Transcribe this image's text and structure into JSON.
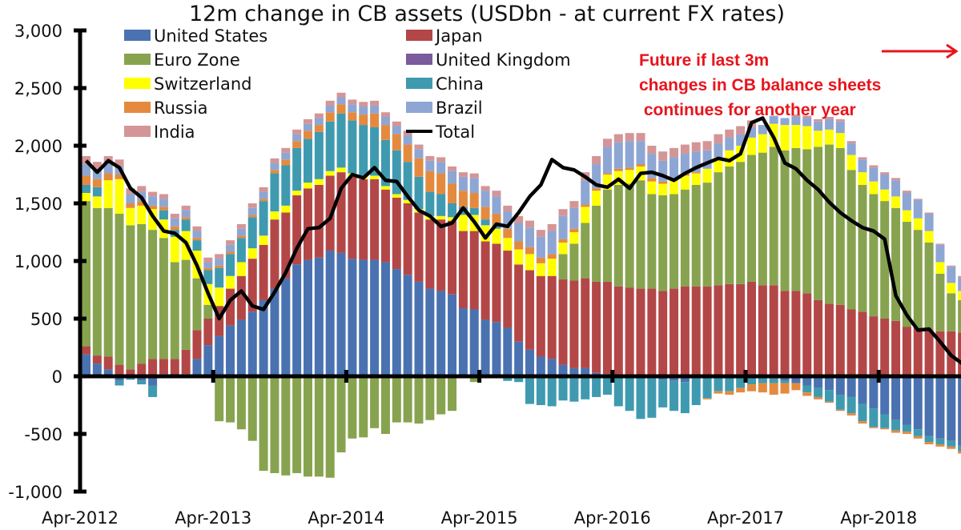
{
  "chart_data": {
    "type": "bar",
    "stacked": true,
    "title": "12m change in CB assets (USDbn - at current FX rates)",
    "xlabel": "",
    "ylabel": "",
    "ylim": [
      -1000,
      3000
    ],
    "yticks": [
      3000,
      2500,
      2000,
      1500,
      1000,
      500,
      0,
      -500,
      -1000
    ],
    "ytick_labels": [
      "3,000",
      "2,500",
      "2,000",
      "1,500",
      "1,000",
      "500",
      "0",
      "-500",
      "-1,000"
    ],
    "xtick_labels": [
      "Apr-2012",
      "Apr-2013",
      "Apr-2014",
      "Apr-2015",
      "Apr-2016",
      "Apr-2017",
      "Apr-2018"
    ],
    "x_start": "Apr-2012",
    "x_frequency": "monthly",
    "grid": false,
    "legend": {
      "placement": "top-left",
      "columns": 2
    },
    "annotation": {
      "lines": [
        "Future if last 3m",
        "changes in CB balance sheets",
        " continues for another year"
      ],
      "arrow": "right",
      "color": "#e8141c"
    },
    "series": [
      {
        "name": "United States",
        "color": "#4a72b0",
        "values": [
          190,
          110,
          60,
          -40,
          -20,
          -40,
          -80,
          20,
          10,
          20,
          150,
          270,
          350,
          440,
          490,
          560,
          660,
          760,
          850,
          970,
          1010,
          1030,
          1090,
          1070,
          1020,
          1010,
          1010,
          990,
          930,
          880,
          820,
          760,
          740,
          710,
          590,
          580,
          490,
          470,
          420,
          300,
          230,
          170,
          150,
          100,
          70,
          70,
          30,
          20,
          10,
          0,
          -10,
          -20,
          -30,
          -40,
          -50,
          -20,
          -10,
          0,
          -10,
          0,
          0,
          0,
          -20,
          -40,
          -60,
          -80,
          -100,
          -120,
          -160,
          -180,
          -240,
          -280,
          -330,
          -380,
          -420,
          -460,
          -520,
          -540,
          -560,
          -600
        ]
      },
      {
        "name": "Japan",
        "color": "#b34748",
        "values": [
          70,
          70,
          110,
          100,
          60,
          110,
          150,
          130,
          140,
          210,
          250,
          230,
          260,
          320,
          380,
          460,
          480,
          600,
          570,
          600,
          620,
          630,
          650,
          700,
          710,
          700,
          700,
          630,
          620,
          620,
          600,
          600,
          620,
          640,
          670,
          680,
          680,
          680,
          670,
          670,
          690,
          700,
          720,
          740,
          760,
          780,
          790,
          800,
          770,
          770,
          760,
          760,
          740,
          760,
          780,
          780,
          780,
          790,
          800,
          800,
          820,
          790,
          790,
          740,
          740,
          720,
          660,
          630,
          620,
          580,
          560,
          520,
          500,
          480,
          430,
          420,
          400,
          390,
          390,
          380
        ]
      },
      {
        "name": "Euro Zone",
        "color": "#87a34f",
        "values": [
          1260,
          1280,
          1290,
          1310,
          1250,
          1210,
          1120,
          1050,
          840,
          780,
          450,
          120,
          -390,
          -400,
          -460,
          -560,
          -820,
          -840,
          -860,
          -840,
          -870,
          -870,
          -880,
          -660,
          -540,
          -530,
          -450,
          -500,
          -400,
          -400,
          -410,
          -380,
          -330,
          -300,
          -10,
          -50,
          0,
          0,
          0,
          0,
          0,
          0,
          0,
          220,
          320,
          480,
          660,
          800,
          880,
          900,
          940,
          820,
          830,
          820,
          840,
          880,
          900,
          980,
          1020,
          1060,
          1100,
          1150,
          1200,
          1220,
          1240,
          1250,
          1330,
          1380,
          1360,
          1210,
          1100,
          1060,
          1020,
          980,
          910,
          850,
          760,
          500,
          330,
          280
        ]
      },
      {
        "name": "United Kingdom",
        "color": "#7a5b9c",
        "values": [
          0,
          0,
          0,
          0,
          0,
          0,
          0,
          0,
          0,
          0,
          0,
          0,
          0,
          0,
          0,
          0,
          0,
          0,
          0,
          0,
          0,
          0,
          0,
          0,
          0,
          0,
          0,
          0,
          0,
          0,
          0,
          0,
          0,
          0,
          0,
          0,
          0,
          0,
          0,
          0,
          0,
          0,
          0,
          0,
          0,
          0,
          0,
          0,
          0,
          0,
          0,
          0,
          0,
          0,
          0,
          0,
          0,
          0,
          0,
          0,
          0,
          0,
          0,
          0,
          0,
          0,
          0,
          0,
          0,
          0,
          0,
          0,
          0,
          0,
          0,
          0,
          0,
          0,
          0,
          0
        ]
      },
      {
        "name": "Switzerland",
        "color": "#ffff00",
        "values": [
          70,
          100,
          240,
          300,
          150,
          160,
          180,
          160,
          220,
          250,
          240,
          180,
          160,
          110,
          120,
          90,
          80,
          70,
          60,
          40,
          50,
          50,
          40,
          40,
          30,
          30,
          30,
          30,
          30,
          30,
          30,
          30,
          30,
          30,
          140,
          140,
          140,
          130,
          110,
          130,
          140,
          110,
          150,
          100,
          100,
          140,
          130,
          130,
          120,
          120,
          120,
          110,
          100,
          120,
          120,
          100,
          120,
          130,
          140,
          140,
          150,
          160,
          200,
          220,
          200,
          200,
          140,
          130,
          130,
          130,
          110,
          110,
          100,
          100,
          100,
          100,
          100,
          100,
          90,
          80
        ]
      },
      {
        "name": "China",
        "color": "#3f9ab0",
        "values": [
          70,
          80,
          0,
          -40,
          -10,
          -30,
          -100,
          80,
          60,
          100,
          90,
          120,
          170,
          190,
          210,
          270,
          300,
          330,
          350,
          370,
          380,
          410,
          430,
          470,
          460,
          440,
          420,
          400,
          380,
          330,
          280,
          210,
          190,
          120,
          70,
          60,
          50,
          30,
          -40,
          -50,
          -240,
          -250,
          -260,
          -210,
          -220,
          -200,
          -180,
          -160,
          -260,
          -300,
          -360,
          -340,
          -240,
          -260,
          -270,
          -230,
          -180,
          -130,
          -120,
          -100,
          -70,
          -60,
          -40,
          -20,
          0,
          -60,
          -80,
          -100,
          -130,
          -140,
          -150,
          -160,
          -120,
          -90,
          -60,
          -60,
          -50,
          -50,
          -50,
          -50
        ]
      },
      {
        "name": "Russia",
        "color": "#e48a3e",
        "values": [
          80,
          70,
          60,
          40,
          40,
          40,
          30,
          30,
          30,
          20,
          20,
          20,
          20,
          20,
          20,
          20,
          20,
          30,
          50,
          60,
          70,
          60,
          80,
          80,
          70,
          90,
          120,
          130,
          140,
          150,
          160,
          180,
          180,
          170,
          140,
          130,
          110,
          100,
          80,
          70,
          60,
          50,
          40,
          30,
          30,
          20,
          20,
          10,
          20,
          20,
          20,
          30,
          20,
          20,
          20,
          10,
          -10,
          -20,
          -30,
          -40,
          -60,
          -80,
          -100,
          -90,
          -60,
          -30,
          -20,
          -10,
          -10,
          -20,
          -20,
          -10,
          -10,
          -20,
          -20,
          -20,
          -20,
          -20,
          -20,
          -20
        ]
      },
      {
        "name": "Brazil",
        "color": "#8ea6d4",
        "values": [
          100,
          80,
          80,
          70,
          80,
          80,
          80,
          70,
          70,
          60,
          60,
          50,
          60,
          60,
          60,
          60,
          60,
          60,
          60,
          60,
          60,
          60,
          60,
          60,
          70,
          70,
          70,
          70,
          70,
          80,
          80,
          90,
          100,
          110,
          120,
          130,
          140,
          150,
          150,
          160,
          170,
          180,
          200,
          200,
          180,
          210,
          210,
          230,
          230,
          230,
          200,
          210,
          180,
          180,
          170,
          180,
          160,
          120,
          110,
          100,
          90,
          80,
          70,
          60,
          70,
          70,
          80,
          90,
          100,
          100,
          110,
          120,
          130,
          140,
          150,
          160,
          150,
          150,
          140,
          120
        ]
      },
      {
        "name": "India",
        "color": "#d49597",
        "values": [
          70,
          70,
          70,
          60,
          50,
          50,
          40,
          40,
          40,
          40,
          40,
          40,
          40,
          40,
          40,
          40,
          40,
          40,
          40,
          40,
          40,
          40,
          40,
          40,
          40,
          40,
          40,
          40,
          40,
          40,
          40,
          40,
          40,
          40,
          40,
          40,
          40,
          50,
          50,
          60,
          60,
          60,
          60,
          60,
          60,
          70,
          70,
          70,
          70,
          70,
          70,
          70,
          80,
          80,
          80,
          80,
          80,
          80,
          70,
          70,
          60,
          0,
          0,
          0,
          20,
          20,
          20,
          20,
          20,
          20,
          20,
          20,
          20,
          20,
          20,
          10,
          10,
          10,
          10,
          10
        ]
      }
    ],
    "total": {
      "name": "Total",
      "color": "#000000",
      "values": [
        1870,
        1770,
        1870,
        1810,
        1630,
        1550,
        1390,
        1260,
        1240,
        1160,
        960,
        720,
        500,
        660,
        740,
        610,
        580,
        730,
        900,
        1110,
        1280,
        1290,
        1370,
        1630,
        1750,
        1720,
        1810,
        1700,
        1690,
        1560,
        1440,
        1390,
        1300,
        1330,
        1460,
        1340,
        1200,
        1320,
        1300,
        1420,
        1560,
        1660,
        1880,
        1810,
        1790,
        1730,
        1660,
        1640,
        1710,
        1630,
        1760,
        1770,
        1740,
        1700,
        1760,
        1810,
        1850,
        1890,
        1870,
        1930,
        2200,
        2240,
        2070,
        1850,
        1800,
        1700,
        1620,
        1510,
        1420,
        1350,
        1290,
        1260,
        1190,
        700,
        530,
        400,
        410,
        300,
        180,
        110
      ]
    },
    "legend_entries": [
      {
        "label": "United States",
        "color": "#4a72b0",
        "kind": "box"
      },
      {
        "label": "Japan",
        "color": "#b34748",
        "kind": "box"
      },
      {
        "label": "Euro Zone",
        "color": "#87a34f",
        "kind": "box"
      },
      {
        "label": "United Kingdom",
        "color": "#7a5b9c",
        "kind": "box"
      },
      {
        "label": "Switzerland",
        "color": "#ffff00",
        "kind": "box"
      },
      {
        "label": "China",
        "color": "#3f9ab0",
        "kind": "box"
      },
      {
        "label": "Russia",
        "color": "#e48a3e",
        "kind": "box"
      },
      {
        "label": "Brazil",
        "color": "#8ea6d4",
        "kind": "box"
      },
      {
        "label": "India",
        "color": "#d49597",
        "kind": "box"
      },
      {
        "label": "Total",
        "color": "#000000",
        "kind": "line"
      }
    ]
  }
}
